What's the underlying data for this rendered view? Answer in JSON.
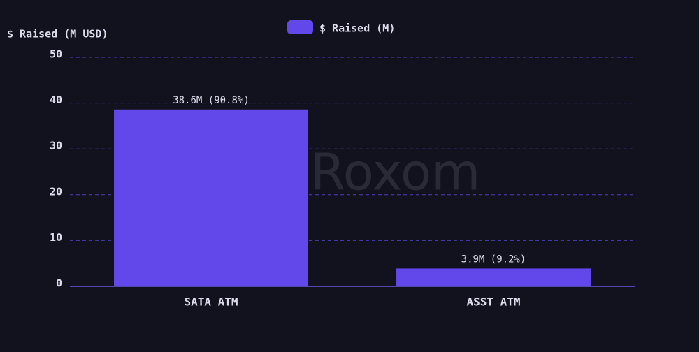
{
  "chart_data": {
    "type": "bar",
    "y_label": "$ Raised (M USD)",
    "categories": [
      "SATA ATM",
      "ASST ATM"
    ],
    "series": [
      {
        "name": "$ Raised (M)",
        "color": "#6248ea",
        "values": [
          38.6,
          3.9
        ],
        "value_labels": [
          "38.6M (90.8%)",
          "3.9M (9.2%)"
        ]
      }
    ],
    "ylim": [
      0,
      50
    ],
    "yticks": [
      0,
      10,
      20,
      30,
      40,
      50
    ],
    "grid": true,
    "legend": "top",
    "watermark": "Roxom"
  }
}
